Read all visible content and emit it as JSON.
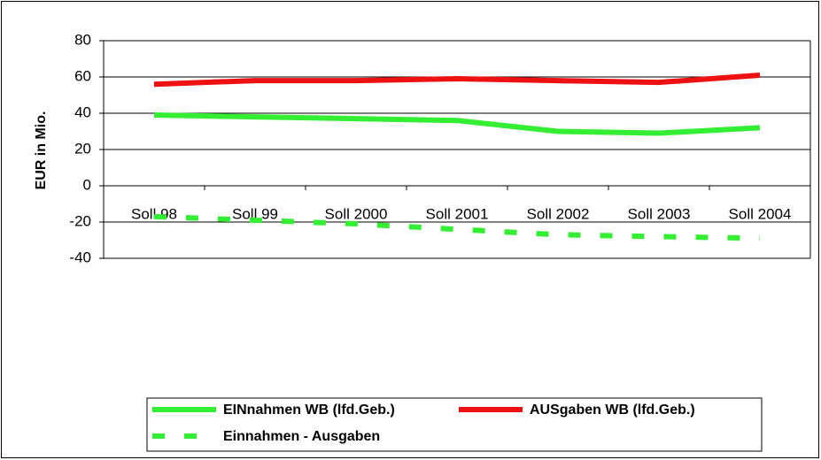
{
  "chart_data": {
    "type": "line",
    "y_label": "EUR in Mio.",
    "categories": [
      "Soll 98",
      "Soll 99",
      "Soll 2000",
      "Soll 2001",
      "Soll 2002",
      "Soll 2003",
      "Soll 2004"
    ],
    "series": [
      {
        "name": "EINnahmen WB (lfd.Geb.)",
        "color": "#33ee33",
        "dashed": false,
        "values": [
          39,
          38,
          37,
          36,
          30,
          29,
          32
        ]
      },
      {
        "name": "AUSgaben WB (lfd.Geb.)",
        "color": "#ee1111",
        "dashed": false,
        "values": [
          56,
          58,
          58,
          59,
          58,
          57,
          61
        ]
      },
      {
        "name": "Einnahmen - Ausgaben",
        "color": "#33ee33",
        "dashed": true,
        "values": [
          -17,
          -19,
          -21,
          -24,
          -27,
          -28,
          -29
        ]
      }
    ],
    "ylim": [
      -40,
      80
    ],
    "yticks": [
      -40,
      -20,
      0,
      20,
      40,
      60,
      80
    ],
    "grid": true,
    "legend": "bottom"
  }
}
